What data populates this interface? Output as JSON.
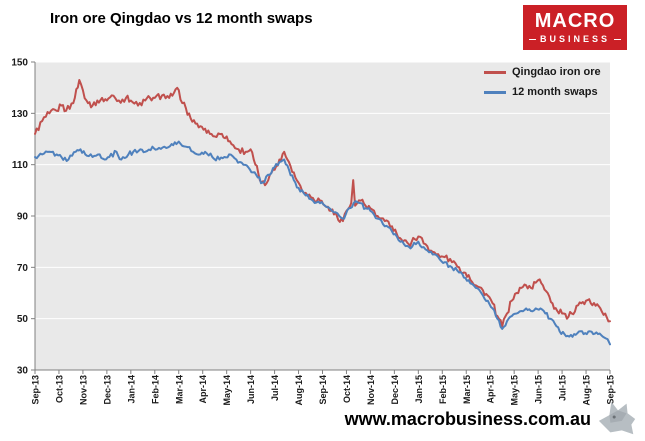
{
  "header": {
    "title": "Iron ore Qingdao vs 12 month swaps"
  },
  "logo": {
    "line1": "MACRO",
    "line2": "BUSINESS",
    "bg_color": "#cb2026",
    "text_color": "#ffffff"
  },
  "footer": {
    "website": "www.macrobusiness.com.au"
  },
  "chart_data": {
    "type": "line",
    "title": "Iron ore Qingdao vs 12 month swaps",
    "xlabel": "",
    "ylabel": "",
    "ylim": [
      30,
      150
    ],
    "y_ticks": [
      30,
      50,
      70,
      90,
      110,
      130,
      150
    ],
    "x_range_months": [
      0,
      24
    ],
    "x_tick_labels": [
      "Sep-13",
      "Oct-13",
      "Nov-13",
      "Dec-13",
      "Jan-14",
      "Feb-14",
      "Mar-14",
      "Apr-14",
      "May-14",
      "Jun-14",
      "Jul-14",
      "Aug-14",
      "Sep-14",
      "Oct-14",
      "Nov-14",
      "Dec-14",
      "Jan-15",
      "Feb-15",
      "Mar-15",
      "Apr-15",
      "May-15",
      "Jun-15",
      "Jul-15",
      "Aug-15",
      "Sep-15"
    ],
    "x_label_rotation": -90,
    "grid": "horizontal",
    "legend_position": "top-right-inside",
    "plot_bg": "#e9e9e9",
    "grid_color": "#ffffff",
    "axis_color": "#808080",
    "tick_label_color": "#1a1a1a",
    "series": [
      {
        "name": "Qingdao iron ore",
        "color": "#C0504D",
        "visual_noise": 1.3,
        "points": [
          [
            0,
            122
          ],
          [
            0.3,
            127
          ],
          [
            0.6,
            130
          ],
          [
            0.9,
            131
          ],
          [
            1.1,
            133
          ],
          [
            1.3,
            131
          ],
          [
            1.6,
            134
          ],
          [
            1.85,
            143
          ],
          [
            2,
            139
          ],
          [
            2.15,
            135
          ],
          [
            2.4,
            133
          ],
          [
            2.6,
            135
          ],
          [
            2.8,
            136
          ],
          [
            3,
            135
          ],
          [
            3.2,
            137
          ],
          [
            3.5,
            135
          ],
          [
            3.8,
            136
          ],
          [
            4,
            135
          ],
          [
            4.3,
            133
          ],
          [
            4.6,
            135
          ],
          [
            4.8,
            136
          ],
          [
            5,
            136
          ],
          [
            5.3,
            137
          ],
          [
            5.6,
            136
          ],
          [
            5.8,
            138
          ],
          [
            6,
            139
          ],
          [
            6.15,
            134
          ],
          [
            6.3,
            132
          ],
          [
            6.5,
            128
          ],
          [
            6.7,
            126
          ],
          [
            6.9,
            125
          ],
          [
            7.1,
            124
          ],
          [
            7.3,
            122
          ],
          [
            7.5,
            121
          ],
          [
            7.8,
            122
          ],
          [
            8,
            121
          ],
          [
            8.2,
            118
          ],
          [
            8.5,
            116
          ],
          [
            8.8,
            115
          ],
          [
            9,
            116
          ],
          [
            9.2,
            110
          ],
          [
            9.45,
            103
          ],
          [
            9.6,
            102
          ],
          [
            9.8,
            106
          ],
          [
            10,
            108
          ],
          [
            10.2,
            112
          ],
          [
            10.4,
            115
          ],
          [
            10.6,
            111
          ],
          [
            10.8,
            107
          ],
          [
            11,
            103
          ],
          [
            11.3,
            99
          ],
          [
            11.6,
            97
          ],
          [
            11.9,
            96
          ],
          [
            12.1,
            94
          ],
          [
            12.35,
            92
          ],
          [
            12.6,
            90
          ],
          [
            12.85,
            88
          ],
          [
            13,
            92
          ],
          [
            13.2,
            95
          ],
          [
            13.28,
            104
          ],
          [
            13.36,
            94
          ],
          [
            13.6,
            96
          ],
          [
            13.8,
            94
          ],
          [
            14,
            93
          ],
          [
            14.3,
            90
          ],
          [
            14.6,
            88
          ],
          [
            14.9,
            86
          ],
          [
            15.1,
            83
          ],
          [
            15.35,
            80
          ],
          [
            15.6,
            79
          ],
          [
            15.85,
            81
          ],
          [
            16,
            82
          ],
          [
            16.3,
            79
          ],
          [
            16.6,
            76
          ],
          [
            16.9,
            74
          ],
          [
            17.1,
            74
          ],
          [
            17.4,
            72
          ],
          [
            17.7,
            70
          ],
          [
            17.9,
            68
          ],
          [
            18.1,
            67
          ],
          [
            18.4,
            63
          ],
          [
            18.7,
            61
          ],
          [
            18.9,
            59
          ],
          [
            19.1,
            56
          ],
          [
            19.3,
            51
          ],
          [
            19.5,
            47
          ],
          [
            19.7,
            52
          ],
          [
            19.9,
            57
          ],
          [
            20.1,
            60
          ],
          [
            20.3,
            62
          ],
          [
            20.5,
            63
          ],
          [
            20.7,
            62
          ],
          [
            20.9,
            64
          ],
          [
            21,
            65
          ],
          [
            21.2,
            63
          ],
          [
            21.4,
            60
          ],
          [
            21.6,
            56
          ],
          [
            21.8,
            53
          ],
          [
            22,
            52
          ],
          [
            22.2,
            50
          ],
          [
            22.4,
            52
          ],
          [
            22.6,
            55
          ],
          [
            22.8,
            56
          ],
          [
            23,
            57
          ],
          [
            23.2,
            56
          ],
          [
            23.4,
            55
          ],
          [
            23.6,
            54
          ],
          [
            23.8,
            52
          ],
          [
            24,
            49
          ]
        ]
      },
      {
        "name": "12 month swaps",
        "color": "#4F81BD",
        "visual_noise": 0.9,
        "points": [
          [
            0,
            113
          ],
          [
            0.3,
            114
          ],
          [
            0.6,
            115
          ],
          [
            0.9,
            114
          ],
          [
            1.1,
            113
          ],
          [
            1.4,
            112
          ],
          [
            1.7,
            115
          ],
          [
            1.9,
            116
          ],
          [
            2.1,
            114
          ],
          [
            2.4,
            113
          ],
          [
            2.7,
            114
          ],
          [
            2.9,
            112
          ],
          [
            3.1,
            113
          ],
          [
            3.4,
            115
          ],
          [
            3.6,
            112
          ],
          [
            3.9,
            114
          ],
          [
            4.1,
            115
          ],
          [
            4.4,
            116
          ],
          [
            4.6,
            115
          ],
          [
            4.9,
            117
          ],
          [
            5.1,
            116
          ],
          [
            5.4,
            117
          ],
          [
            5.7,
            118
          ],
          [
            5.9,
            118
          ],
          [
            6,
            119
          ],
          [
            6.3,
            117
          ],
          [
            6.6,
            115
          ],
          [
            6.9,
            114
          ],
          [
            7.1,
            115
          ],
          [
            7.4,
            113
          ],
          [
            7.7,
            112
          ],
          [
            7.9,
            113
          ],
          [
            8.1,
            114
          ],
          [
            8.4,
            112
          ],
          [
            8.7,
            110
          ],
          [
            8.9,
            109
          ],
          [
            9.1,
            107
          ],
          [
            9.3,
            105
          ],
          [
            9.5,
            103
          ],
          [
            9.8,
            106
          ],
          [
            10,
            109
          ],
          [
            10.2,
            111
          ],
          [
            10.4,
            112
          ],
          [
            10.6,
            108
          ],
          [
            10.8,
            104
          ],
          [
            11,
            101
          ],
          [
            11.3,
            98
          ],
          [
            11.6,
            96
          ],
          [
            11.9,
            95
          ],
          [
            12.1,
            94
          ],
          [
            12.4,
            92
          ],
          [
            12.7,
            90
          ],
          [
            12.9,
            89
          ],
          [
            13.1,
            93
          ],
          [
            13.3,
            95
          ],
          [
            13.6,
            95
          ],
          [
            13.8,
            93
          ],
          [
            14,
            92
          ],
          [
            14.3,
            89
          ],
          [
            14.6,
            86
          ],
          [
            14.9,
            84
          ],
          [
            15.1,
            82
          ],
          [
            15.4,
            79
          ],
          [
            15.6,
            78
          ],
          [
            15.9,
            79
          ],
          [
            16,
            80
          ],
          [
            16.3,
            77
          ],
          [
            16.6,
            75
          ],
          [
            16.9,
            73
          ],
          [
            17.1,
            72
          ],
          [
            17.4,
            70
          ],
          [
            17.7,
            68
          ],
          [
            17.9,
            66
          ],
          [
            18.1,
            65
          ],
          [
            18.4,
            62
          ],
          [
            18.7,
            59
          ],
          [
            18.9,
            57
          ],
          [
            19.1,
            54
          ],
          [
            19.3,
            50
          ],
          [
            19.5,
            46
          ],
          [
            19.7,
            49
          ],
          [
            19.9,
            51
          ],
          [
            20.1,
            52
          ],
          [
            20.3,
            53
          ],
          [
            20.5,
            54
          ],
          [
            20.7,
            53
          ],
          [
            20.9,
            54
          ],
          [
            21.1,
            54
          ],
          [
            21.3,
            52
          ],
          [
            21.5,
            50
          ],
          [
            21.7,
            48
          ],
          [
            21.9,
            45
          ],
          [
            22.1,
            44
          ],
          [
            22.3,
            43
          ],
          [
            22.5,
            44
          ],
          [
            22.7,
            45
          ],
          [
            22.9,
            44
          ],
          [
            23.1,
            45
          ],
          [
            23.3,
            44
          ],
          [
            23.5,
            44
          ],
          [
            23.7,
            43
          ],
          [
            23.9,
            42
          ],
          [
            24,
            40
          ]
        ]
      }
    ]
  }
}
